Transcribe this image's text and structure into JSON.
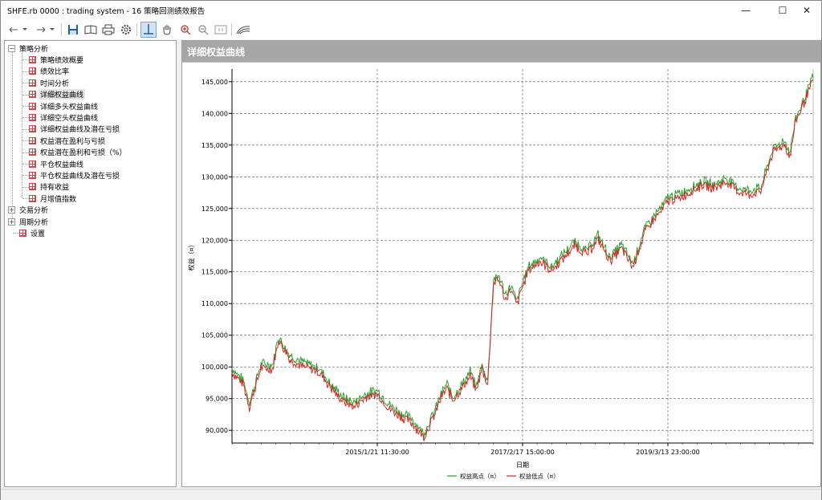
{
  "window": {
    "title": "SHFE.rb 0000 : trading system - 16 策略回测绩效报告",
    "minimize_glyph": "—",
    "maximize_glyph": "☐",
    "close_glyph": "✕"
  },
  "toolbar": {
    "icons": [
      "back-arrow-icon",
      "dropdown-icon",
      "forward-arrow-icon",
      "dropdown-icon",
      "save-icon",
      "book-icon",
      "print-icon",
      "settings-icon",
      "crosshair-icon",
      "hand-pan-icon",
      "zoom-in-icon",
      "zoom-out-icon",
      "zoom-fit-icon",
      "chart-style-icon"
    ]
  },
  "tree": {
    "groups": [
      {
        "label": "策略分析",
        "expander": "−"
      },
      {
        "label": "交易分析",
        "expander": "+"
      },
      {
        "label": "周期分析",
        "expander": "+"
      },
      {
        "label": "设置"
      }
    ],
    "items": [
      "策略绩效概要",
      "绩效比率",
      "时间分析",
      "详细权益曲线",
      "详细多头权益曲线",
      "详细空头权益曲线",
      "详细权益曲线及潜在亏损",
      "权益潜在盈利与亏损",
      "权益潜在盈利和亏损（%）",
      "平仓权益曲线",
      "平仓权益曲线及潜在亏损",
      "持有收益",
      "月增值指数"
    ],
    "selected_index": 3
  },
  "panel": {
    "title": "详细权益曲线"
  },
  "chart_data": {
    "type": "line",
    "ylabel": "权益（¤）",
    "xlabel": "日期",
    "ylim": [
      88000,
      147000
    ],
    "yticks": [
      "90,000",
      "95,000",
      "100,000",
      "105,000",
      "110,000",
      "115,000",
      "120,000",
      "125,000",
      "130,000",
      "135,000",
      "140,000",
      "145,000"
    ],
    "ytick_values": [
      90000,
      95000,
      100000,
      105000,
      110000,
      115000,
      120000,
      125000,
      130000,
      135000,
      140000,
      145000
    ],
    "xticks": [
      "2015/1/21 11:30:00",
      "2017/2/17 15:00:00",
      "2019/3/13 23:00:00"
    ],
    "xtick_positions": [
      0.25,
      0.5,
      0.75
    ],
    "grid": true,
    "legend_placement": "bottom-center",
    "colors": {
      "high": "#2ca02c",
      "low": "#d62728"
    },
    "series": [
      {
        "name": "权益高点（¤）",
        "color": "#2ca02c"
      },
      {
        "name": "权益低点（¤）",
        "color": "#d62728"
      }
    ],
    "x": [
      0,
      0.02,
      0.03,
      0.05,
      0.07,
      0.08,
      0.1,
      0.12,
      0.15,
      0.17,
      0.19,
      0.21,
      0.23,
      0.25,
      0.27,
      0.29,
      0.31,
      0.33,
      0.35,
      0.36,
      0.37,
      0.38,
      0.4,
      0.41,
      0.42,
      0.43,
      0.44,
      0.45,
      0.46,
      0.47,
      0.48,
      0.49,
      0.5,
      0.51,
      0.53,
      0.55,
      0.57,
      0.59,
      0.61,
      0.63,
      0.65,
      0.67,
      0.69,
      0.71,
      0.73,
      0.74,
      0.75,
      0.77,
      0.79,
      0.81,
      0.83,
      0.85,
      0.87,
      0.89,
      0.91,
      0.93,
      0.95,
      0.96,
      0.97,
      0.98,
      1.0
    ],
    "values": [
      99500,
      97500,
      94000,
      100200,
      100000,
      104500,
      101500,
      100500,
      99500,
      97000,
      95000,
      94000,
      95500,
      96000,
      93800,
      92500,
      91500,
      89200,
      93000,
      95500,
      97000,
      95000,
      97500,
      99000,
      96500,
      100000,
      97500,
      113500,
      114000,
      111000,
      112500,
      110000,
      113000,
      115500,
      117000,
      115500,
      117500,
      119500,
      118000,
      120500,
      117000,
      119000,
      116000,
      121500,
      124000,
      125000,
      126500,
      127000,
      128000,
      129000,
      128500,
      129500,
      128000,
      127500,
      128000,
      134000,
      135500,
      133500,
      139000,
      141000,
      145500
    ]
  }
}
